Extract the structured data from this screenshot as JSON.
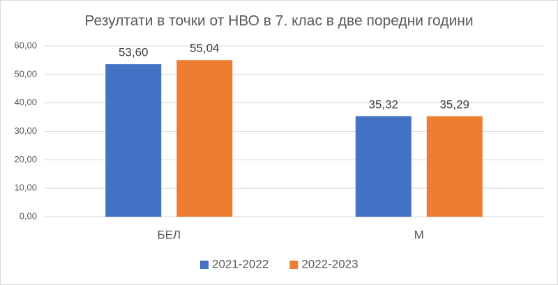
{
  "chart_data": {
    "type": "bar",
    "title": "Резултати в точки от НВО в 7. клас в две поредни години",
    "categories": [
      "БЕЛ",
      "М"
    ],
    "series": [
      {
        "name": "2021-2022",
        "color": "#4472c4",
        "values": [
          53.6,
          35.32
        ],
        "value_labels": [
          "53,60",
          "35,32"
        ]
      },
      {
        "name": "2022-2023",
        "color": "#ed7d31",
        "values": [
          55.04,
          35.29
        ],
        "value_labels": [
          "55,04",
          "35,29"
        ]
      }
    ],
    "ylim": [
      0,
      60
    ],
    "yticks": [
      {
        "value": 0,
        "label": "0,00"
      },
      {
        "value": 10,
        "label": "10,00"
      },
      {
        "value": 20,
        "label": "20,00"
      },
      {
        "value": 30,
        "label": "30,00"
      },
      {
        "value": 40,
        "label": "40,00"
      },
      {
        "value": 50,
        "label": "50,00"
      },
      {
        "value": 60,
        "label": "60,00"
      }
    ],
    "grid": true,
    "legend": "bottom"
  }
}
